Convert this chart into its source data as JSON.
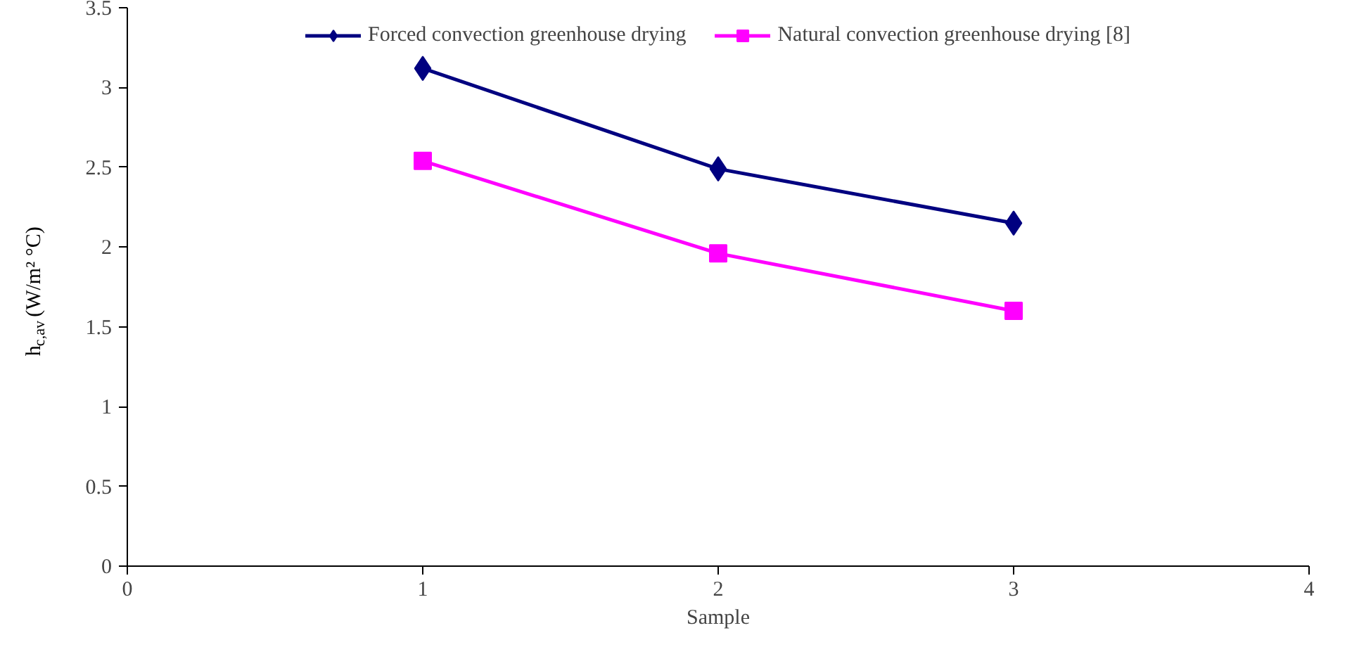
{
  "chart_data": {
    "type": "line",
    "xlabel": "Sample",
    "ylabel": "h$_{c,av}$ (W/m² °C)",
    "x": [
      1,
      2,
      3
    ],
    "series": [
      {
        "name": "Forced convection greenhouse drying",
        "color": "#000080",
        "marker": "diamond",
        "values": [
          3.12,
          2.49,
          2.15
        ]
      },
      {
        "name": "Natural convection greenhouse drying [8]",
        "color": "#ff00ff",
        "marker": "square",
        "values": [
          2.54,
          1.96,
          1.6
        ]
      }
    ],
    "xlim": [
      0,
      4
    ],
    "xticks": [
      0,
      1,
      2,
      3,
      4
    ],
    "ylim": [
      0,
      3.5
    ],
    "yticks": [
      0,
      0.5,
      1,
      1.5,
      2,
      2.5,
      3,
      3.5
    ],
    "grid": false,
    "legend": "top",
    "line_style": "solid"
  }
}
